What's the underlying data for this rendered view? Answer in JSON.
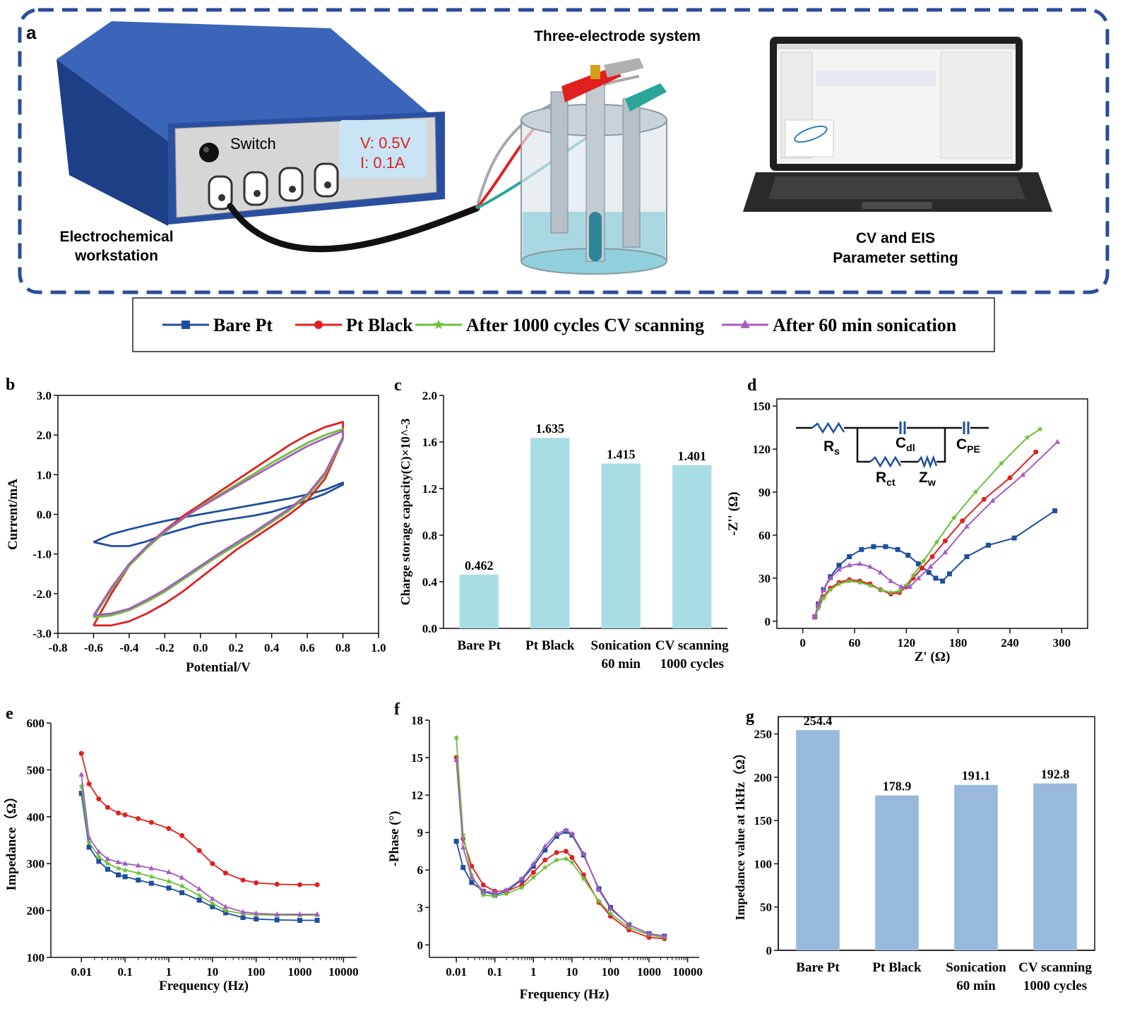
{
  "panel_a": {
    "panel_label": "a",
    "workstation_label": [
      "Electrochemical",
      "workstation"
    ],
    "switch_label": "Switch",
    "display_v": "V: 0.5V",
    "display_i": "I: 0.1A",
    "cell_label": "Three-electrode system",
    "laptop_label": [
      "CV and EIS",
      "Parameter setting"
    ]
  },
  "colors": {
    "bare_pt": "#1f4e9e",
    "pt_black": "#e02020",
    "cv_1000": "#6cbf3a",
    "sonication": "#a55cc0",
    "bar_c": "#a8dde6",
    "bar_g": "#98b9dc",
    "frame_dash": "#2b4c9a",
    "device_blue": "#2b4fa0"
  },
  "legend": [
    {
      "name": "Bare Pt",
      "color": "#1f4e9e",
      "marker": "square"
    },
    {
      "name": "Pt Black",
      "color": "#e02020",
      "marker": "circle"
    },
    {
      "name": "After 1000 cycles CV scanning",
      "color": "#6cbf3a",
      "marker": "star"
    },
    {
      "name": "After 60 min sonication",
      "color": "#a55cc0",
      "marker": "triangle"
    }
  ],
  "chart_data": [
    {
      "id": "b",
      "panel_label": "b",
      "type": "line",
      "xlabel": "Potential/V",
      "ylabel": "Current/mA",
      "xlim": [
        -0.8,
        1.0
      ],
      "ylim": [
        -3.0,
        3.0
      ],
      "xticks": [
        "-0.8",
        "-0.6",
        "-0.4",
        "-0.2",
        "0.0",
        "0.2",
        "0.4",
        "0.6",
        "0.8",
        "1.0"
      ],
      "yticks": [
        "3.0",
        "2.0",
        "1.0",
        "0.0",
        "-1.0",
        "-2.0",
        "-3.0"
      ],
      "series": [
        {
          "name": "Bare Pt",
          "x": [
            -0.6,
            -0.5,
            -0.4,
            -0.3,
            -0.2,
            -0.1,
            0.0,
            0.1,
            0.2,
            0.3,
            0.4,
            0.5,
            0.6,
            0.7,
            0.8,
            0.8,
            0.7,
            0.6,
            0.5,
            0.4,
            0.3,
            0.2,
            0.1,
            0.0,
            -0.1,
            -0.2,
            -0.3,
            -0.4,
            -0.5,
            -0.6
          ],
          "y": [
            -0.7,
            -0.5,
            -0.38,
            -0.27,
            -0.17,
            -0.08,
            0.0,
            0.08,
            0.16,
            0.24,
            0.32,
            0.4,
            0.5,
            0.62,
            0.8,
            0.75,
            0.52,
            0.35,
            0.2,
            0.06,
            -0.03,
            -0.1,
            -0.17,
            -0.25,
            -0.37,
            -0.5,
            -0.68,
            -0.8,
            -0.8,
            -0.7
          ]
        },
        {
          "name": "Pt Black",
          "x": [
            -0.6,
            -0.5,
            -0.4,
            -0.3,
            -0.2,
            -0.1,
            0.0,
            0.1,
            0.2,
            0.3,
            0.4,
            0.5,
            0.6,
            0.7,
            0.8,
            0.8,
            0.75,
            0.7,
            0.6,
            0.5,
            0.4,
            0.3,
            0.2,
            0.1,
            0.0,
            -0.1,
            -0.2,
            -0.3,
            -0.4,
            -0.5,
            -0.6
          ],
          "y": [
            -2.8,
            -2.0,
            -1.3,
            -0.8,
            -0.4,
            -0.05,
            0.25,
            0.55,
            0.85,
            1.15,
            1.45,
            1.75,
            2.0,
            2.2,
            2.33,
            1.9,
            1.4,
            0.9,
            0.35,
            0.0,
            -0.3,
            -0.6,
            -0.9,
            -1.25,
            -1.6,
            -1.95,
            -2.25,
            -2.5,
            -2.7,
            -2.8,
            -2.8
          ]
        },
        {
          "name": "After 1000 cycles CV scanning",
          "x": [
            -0.6,
            -0.5,
            -0.4,
            -0.3,
            -0.2,
            -0.1,
            0.0,
            0.1,
            0.2,
            0.3,
            0.4,
            0.5,
            0.6,
            0.7,
            0.8,
            0.8,
            0.75,
            0.7,
            0.6,
            0.5,
            0.4,
            0.3,
            0.2,
            0.1,
            0.0,
            -0.1,
            -0.2,
            -0.3,
            -0.4,
            -0.5,
            -0.6
          ],
          "y": [
            -2.6,
            -1.9,
            -1.3,
            -0.85,
            -0.45,
            -0.12,
            0.2,
            0.48,
            0.75,
            1.02,
            1.3,
            1.55,
            1.8,
            2.0,
            2.15,
            1.9,
            1.45,
            1.0,
            0.45,
            0.1,
            -0.2,
            -0.5,
            -0.78,
            -1.05,
            -1.35,
            -1.65,
            -1.95,
            -2.2,
            -2.42,
            -2.55,
            -2.6
          ]
        },
        {
          "name": "After 60 min sonication",
          "x": [
            -0.6,
            -0.5,
            -0.4,
            -0.3,
            -0.2,
            -0.1,
            0.0,
            0.1,
            0.2,
            0.3,
            0.4,
            0.5,
            0.6,
            0.7,
            0.8,
            0.8,
            0.75,
            0.7,
            0.6,
            0.5,
            0.4,
            0.3,
            0.2,
            0.1,
            0.0,
            -0.1,
            -0.2,
            -0.3,
            -0.4,
            -0.5,
            -0.6
          ],
          "y": [
            -2.55,
            -1.85,
            -1.25,
            -0.8,
            -0.42,
            -0.1,
            0.18,
            0.44,
            0.7,
            0.96,
            1.22,
            1.47,
            1.72,
            1.92,
            2.1,
            1.95,
            1.5,
            1.05,
            0.5,
            0.15,
            -0.15,
            -0.45,
            -0.72,
            -1.0,
            -1.3,
            -1.6,
            -1.9,
            -2.15,
            -2.38,
            -2.5,
            -2.55
          ]
        }
      ]
    },
    {
      "id": "c",
      "panel_label": "c",
      "type": "bar",
      "ylabel": "Charge storage capacity(C)×10^-3",
      "ylim": [
        0.0,
        2.0
      ],
      "yticks": [
        "0.0",
        "0.4",
        "0.8",
        "1.2",
        "1.6",
        "2.0"
      ],
      "categories": [
        [
          "Bare Pt"
        ],
        [
          "Pt Black"
        ],
        [
          "Sonication",
          "60 min"
        ],
        [
          "CV scanning",
          "1000 cycles"
        ]
      ],
      "values": [
        0.462,
        1.635,
        1.415,
        1.401
      ],
      "value_labels": [
        "0.462",
        "1.635",
        "1.415",
        "1.401"
      ]
    },
    {
      "id": "d",
      "panel_label": "d",
      "type": "scatter",
      "xlabel": "Z' (Ω)",
      "ylabel": "-Z'' (Ω)",
      "xlim": [
        -30,
        330
      ],
      "ylim": [
        -5,
        155
      ],
      "xticks": [
        0,
        60,
        120,
        180,
        240,
        300
      ],
      "yticks": [
        0,
        30,
        60,
        90,
        120,
        150
      ],
      "circuit_labels": {
        "rs": "R",
        "rs_sub": "s",
        "cdl": "C",
        "cdl_sub": "dl",
        "cpe": "C",
        "cpe_sub": "PE",
        "rct": "R",
        "rct_sub": "ct",
        "zw": "Z",
        "zw_sub": "w"
      },
      "series": [
        {
          "name": "Bare Pt",
          "x": [
            14,
            18,
            24,
            32,
            42,
            54,
            68,
            82,
            96,
            110,
            122,
            134,
            146,
            154,
            162,
            170,
            190,
            215,
            245,
            292
          ],
          "y": [
            3,
            12,
            22,
            31,
            39,
            45,
            50,
            52,
            52,
            50,
            46,
            40,
            34,
            30,
            28,
            33,
            45,
            53,
            58,
            77
          ]
        },
        {
          "name": "Pt Black",
          "x": [
            14,
            18,
            24,
            32,
            42,
            54,
            66,
            78,
            90,
            102,
            112,
            120,
            128,
            138,
            150,
            165,
            185,
            210,
            240,
            270
          ],
          "y": [
            3,
            10,
            17,
            23,
            27,
            29,
            28,
            26,
            22,
            19,
            20,
            24,
            30,
            37,
            45,
            56,
            70,
            85,
            100,
            118
          ]
        },
        {
          "name": "After 1000 cycles CV scanning",
          "x": [
            14,
            18,
            24,
            32,
            42,
            54,
            66,
            78,
            90,
            102,
            112,
            120,
            128,
            140,
            155,
            175,
            200,
            230,
            260,
            275
          ],
          "y": [
            3,
            9,
            16,
            22,
            26,
            28,
            27,
            25,
            22,
            20,
            21,
            25,
            32,
            42,
            55,
            72,
            90,
            110,
            128,
            134
          ]
        },
        {
          "name": "After 60 min sonication",
          "x": [
            14,
            18,
            24,
            32,
            42,
            54,
            66,
            78,
            90,
            102,
            114,
            124,
            134,
            148,
            165,
            190,
            220,
            255,
            295
          ],
          "y": [
            3,
            12,
            22,
            30,
            36,
            39,
            40,
            38,
            34,
            28,
            24,
            24,
            30,
            38,
            48,
            66,
            84,
            102,
            125
          ]
        }
      ]
    },
    {
      "id": "e",
      "panel_label": "e",
      "type": "line",
      "xlabel": "Frequency (Hz)",
      "ylabel": "Impedance（Ω）",
      "xscale": "log",
      "xlim": [
        0.002,
        20000
      ],
      "ylim": [
        100,
        600
      ],
      "xticks": [
        "0.01",
        "0.1",
        "1",
        "10",
        "100",
        "1000",
        "10000"
      ],
      "yticks": [
        "100",
        "200",
        "300",
        "400",
        "500",
        "600"
      ],
      "series": [
        {
          "name": "Bare Pt",
          "x": [
            0.01,
            0.015,
            0.025,
            0.04,
            0.07,
            0.1,
            0.2,
            0.4,
            1,
            2,
            5,
            10,
            20,
            50,
            100,
            300,
            1000,
            2500
          ],
          "y": [
            450,
            335,
            305,
            288,
            276,
            272,
            265,
            258,
            248,
            238,
            222,
            208,
            195,
            185,
            182,
            180,
            179,
            179
          ]
        },
        {
          "name": "Pt Black",
          "x": [
            0.01,
            0.015,
            0.025,
            0.04,
            0.07,
            0.1,
            0.2,
            0.4,
            1,
            2,
            5,
            10,
            20,
            50,
            100,
            300,
            1000,
            2500
          ],
          "y": [
            535,
            470,
            438,
            420,
            408,
            404,
            396,
            388,
            375,
            360,
            328,
            300,
            280,
            265,
            259,
            256,
            255,
            255
          ]
        },
        {
          "name": "After 1000 cycles CV scanning",
          "x": [
            0.01,
            0.015,
            0.025,
            0.04,
            0.07,
            0.1,
            0.2,
            0.4,
            1,
            2,
            5,
            10,
            20,
            50,
            100,
            300,
            1000,
            2500
          ],
          "y": [
            465,
            345,
            315,
            300,
            290,
            286,
            280,
            272,
            262,
            252,
            232,
            215,
            200,
            193,
            191,
            190,
            190,
            190
          ]
        },
        {
          "name": "After 60 min sonication",
          "x": [
            0.01,
            0.015,
            0.025,
            0.04,
            0.07,
            0.1,
            0.2,
            0.4,
            1,
            2,
            5,
            10,
            20,
            50,
            100,
            300,
            1000,
            2500
          ],
          "y": [
            490,
            355,
            325,
            310,
            303,
            300,
            296,
            290,
            282,
            270,
            246,
            225,
            208,
            197,
            194,
            192,
            192,
            192
          ]
        }
      ]
    },
    {
      "id": "f",
      "panel_label": "f",
      "type": "line",
      "xlabel": "Frequency (Hz)",
      "ylabel": "-Phase (°)",
      "xscale": "log",
      "xlim": [
        0.002,
        20000
      ],
      "ylim": [
        -1,
        18
      ],
      "xticks": [
        "0.01",
        "0.1",
        "1",
        "10",
        "100",
        "1000",
        "10000"
      ],
      "yticks": [
        "0",
        "3",
        "6",
        "9",
        "12",
        "15",
        "18"
      ],
      "series": [
        {
          "name": "Bare Pt",
          "x": [
            0.01,
            0.015,
            0.025,
            0.05,
            0.1,
            0.2,
            0.5,
            1,
            2,
            4,
            7,
            10,
            20,
            50,
            100,
            300,
            1000,
            2500
          ],
          "y": [
            8.3,
            6.2,
            5.0,
            4.3,
            4.0,
            4.3,
            5.2,
            6.3,
            7.6,
            8.7,
            9.1,
            8.8,
            7.2,
            4.5,
            3.0,
            1.6,
            0.9,
            0.7
          ]
        },
        {
          "name": "Pt Black",
          "x": [
            0.01,
            0.015,
            0.025,
            0.05,
            0.1,
            0.2,
            0.5,
            1,
            2,
            4,
            7,
            10,
            20,
            50,
            100,
            300,
            1000,
            2500
          ],
          "y": [
            15.0,
            8.5,
            6.3,
            4.8,
            4.3,
            4.3,
            4.8,
            5.8,
            6.8,
            7.4,
            7.5,
            7.0,
            5.6,
            3.4,
            2.3,
            1.2,
            0.6,
            0.5
          ]
        },
        {
          "name": "After 1000 cycles CV scanning",
          "x": [
            0.01,
            0.015,
            0.025,
            0.05,
            0.1,
            0.2,
            0.5,
            1,
            2,
            4,
            7,
            10,
            20,
            50,
            100,
            300,
            1000,
            2500
          ],
          "y": [
            16.6,
            8.8,
            5.6,
            4.0,
            3.9,
            4.1,
            4.6,
            5.4,
            6.2,
            6.8,
            6.9,
            6.6,
            5.3,
            3.5,
            2.5,
            1.4,
            0.8,
            0.6
          ]
        },
        {
          "name": "After 60 min sonication",
          "x": [
            0.01,
            0.015,
            0.025,
            0.05,
            0.1,
            0.2,
            0.5,
            1,
            2,
            4,
            7,
            10,
            20,
            50,
            100,
            300,
            1000,
            2500
          ],
          "y": [
            14.8,
            7.8,
            5.4,
            4.3,
            4.2,
            4.4,
            5.3,
            6.5,
            7.9,
            8.9,
            9.2,
            8.9,
            7.3,
            4.4,
            2.9,
            1.6,
            0.9,
            0.7
          ]
        }
      ]
    },
    {
      "id": "g",
      "panel_label": "g",
      "type": "bar",
      "ylabel": "Impedance value at 1kHz（Ω）",
      "ylim": [
        0,
        270
      ],
      "yticks": [
        "0",
        "50",
        "100",
        "150",
        "200",
        "250"
      ],
      "categories": [
        [
          "Bare Pt"
        ],
        [
          "Pt Black"
        ],
        [
          "Sonication",
          "60 min"
        ],
        [
          "CV scanning",
          "1000 cycles"
        ]
      ],
      "values": [
        254.4,
        178.9,
        191.1,
        192.8
      ],
      "value_labels": [
        "254.4",
        "178.9",
        "191.1",
        "192.8"
      ]
    }
  ]
}
